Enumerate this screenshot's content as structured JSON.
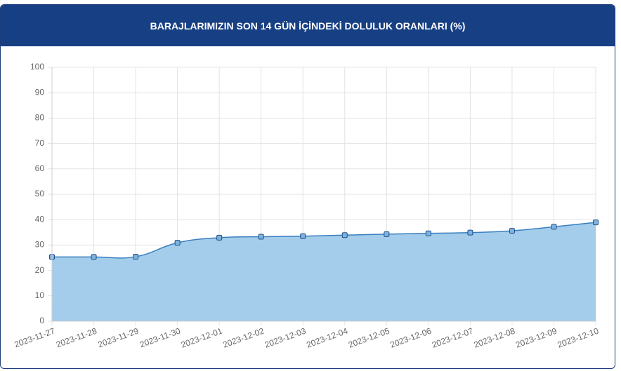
{
  "chart_data": {
    "type": "area",
    "title": "BARAJLARIMIZIN SON 14 GÜN İÇİNDEKİ DOLULUK ORANLARI (%)",
    "categories": [
      "2023-11-27",
      "2023-11-28",
      "2023-11-29",
      "2023-11-30",
      "2023-12-01",
      "2023-12-02",
      "2023-12-03",
      "2023-12-04",
      "2023-12-05",
      "2023-12-06",
      "2023-12-07",
      "2023-12-08",
      "2023-12-09",
      "2023-12-10"
    ],
    "series": [
      {
        "color": "#3a7fc0",
        "fill": "#a3cdea",
        "values": [
          25.3,
          25.3,
          25.4,
          30.9,
          32.9,
          33.3,
          33.5,
          33.9,
          34.3,
          34.6,
          34.9,
          35.6,
          37.2,
          38.9
        ]
      }
    ],
    "ylim": [
      0,
      100
    ],
    "yticks": [
      0,
      10,
      20,
      30,
      40,
      50,
      60,
      70,
      80,
      90,
      100
    ],
    "grid": true
  }
}
